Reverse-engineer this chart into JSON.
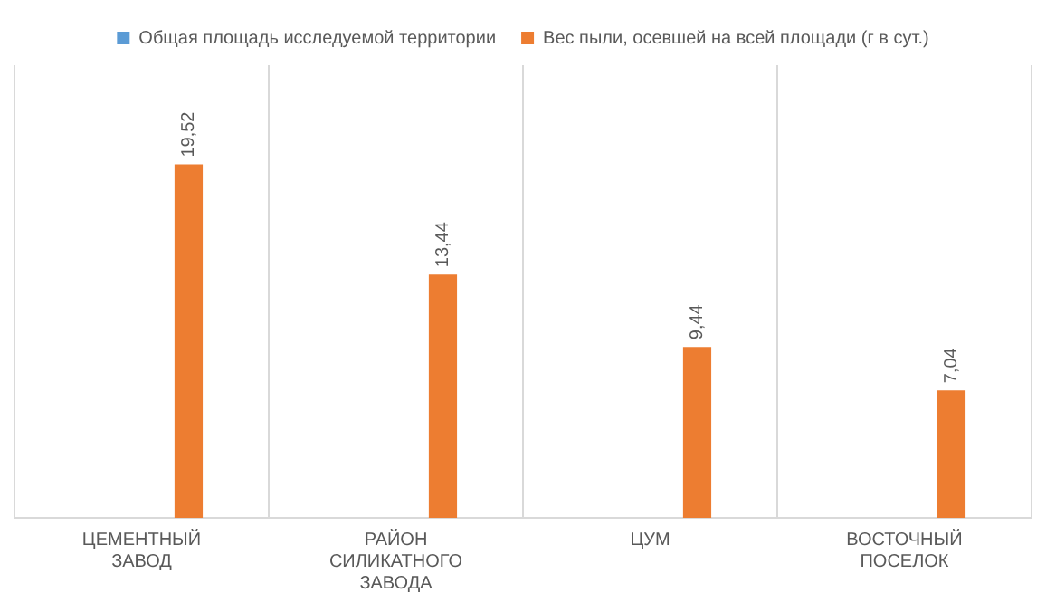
{
  "chart_data": {
    "type": "bar",
    "categories": [
      "ЦЕМЕНТНЫЙ ЗАВОД",
      "РАЙОН СИЛИКАТНОГО ЗАВОДА",
      "ЦУМ",
      "ВОСТОЧНЫЙ ПОСЕЛОК"
    ],
    "series": [
      {
        "name": "Общая площадь исследуемой территории",
        "color": "#5b9bd5",
        "values": [
          null,
          null,
          null,
          null
        ]
      },
      {
        "name": "Вес пыли, осевшей на всей площади (г в сут.)",
        "color": "#ed7d31",
        "values": [
          19.52,
          13.44,
          9.44,
          7.04
        ],
        "value_labels": [
          "19,52",
          "13,44",
          "9,44",
          "7,04"
        ]
      }
    ],
    "grid": "x",
    "legend": "top"
  }
}
